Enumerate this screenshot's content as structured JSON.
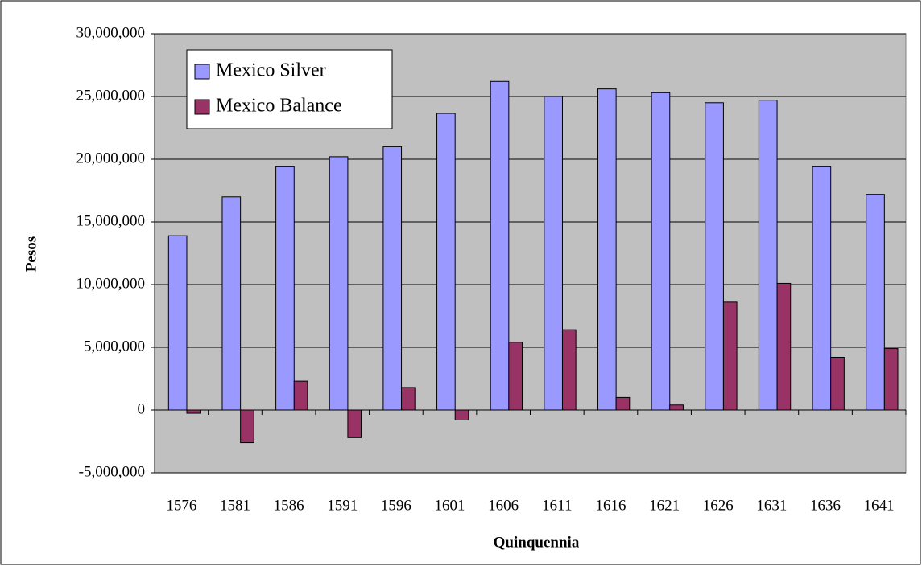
{
  "chart_data": {
    "type": "bar",
    "x_label": "Quinquennia",
    "y_label": "Pesos",
    "categories": [
      "1576",
      "1581",
      "1586",
      "1591",
      "1596",
      "1601",
      "1606",
      "1611",
      "1616",
      "1621",
      "1626",
      "1631",
      "1636",
      "1641"
    ],
    "series": [
      {
        "name": "Mexico Silver",
        "color": "#9999ff",
        "values": [
          13900000,
          17000000,
          19400000,
          20200000,
          21000000,
          23650000,
          26200000,
          25000000,
          25600000,
          25300000,
          24500000,
          24700000,
          19400000,
          17200000
        ]
      },
      {
        "name": "Mexico Balance",
        "color": "#993366",
        "values": [
          -260000,
          -2600000,
          2300000,
          -2200000,
          1800000,
          -800000,
          5400000,
          6400000,
          1000000,
          400000,
          8600000,
          10100000,
          4200000,
          4900000
        ]
      }
    ],
    "ylim": [
      -5000000,
      30000000
    ],
    "yticks": [
      {
        "value": -5000000,
        "label": "-5,000,000"
      },
      0,
      {
        "value": 5000000,
        "label": "5,000,000"
      },
      {
        "value": 10000000,
        "label": "10,000,000"
      },
      {
        "value": 15000000,
        "label": "15,000,000"
      },
      {
        "value": 20000000,
        "label": "20,000,000"
      },
      {
        "value": 25000000,
        "label": "25,000,000"
      },
      {
        "value": 30000000,
        "label": "30,000,000"
      }
    ],
    "grid": true,
    "legend": "upper left",
    "background": "#c0c0c0"
  }
}
